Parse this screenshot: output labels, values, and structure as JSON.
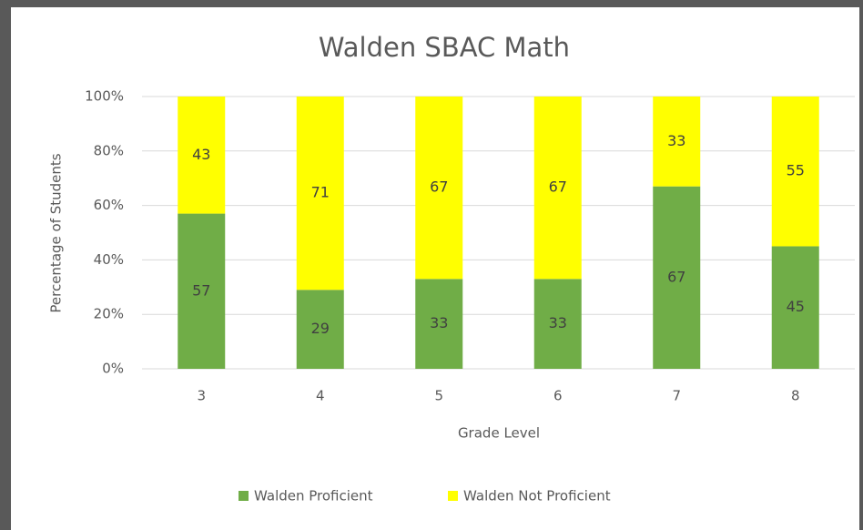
{
  "chart_data": {
    "type": "stacked_bar",
    "title": "Walden SBAC Math",
    "x_label": "Grade Level",
    "y_label": "Percentage of Students",
    "categories": [
      "3",
      "4",
      "5",
      "6",
      "7",
      "8"
    ],
    "series": [
      {
        "name": "Walden Proficient",
        "color": "#70ad47",
        "values": [
          57,
          29,
          33,
          33,
          67,
          45
        ]
      },
      {
        "name": "Walden Not Proficient",
        "color": "#ffff00",
        "values": [
          43,
          71,
          67,
          67,
          33,
          55
        ]
      }
    ],
    "ylim": [
      0,
      100
    ],
    "yticks": [
      {
        "value": 0,
        "label": "0%"
      },
      {
        "value": 20,
        "label": "20%"
      },
      {
        "value": 40,
        "label": "40%"
      },
      {
        "value": 60,
        "label": "60%"
      },
      {
        "value": 80,
        "label": "80%"
      },
      {
        "value": 100,
        "label": "100%"
      }
    ],
    "grid": true,
    "legend": "bottom"
  }
}
